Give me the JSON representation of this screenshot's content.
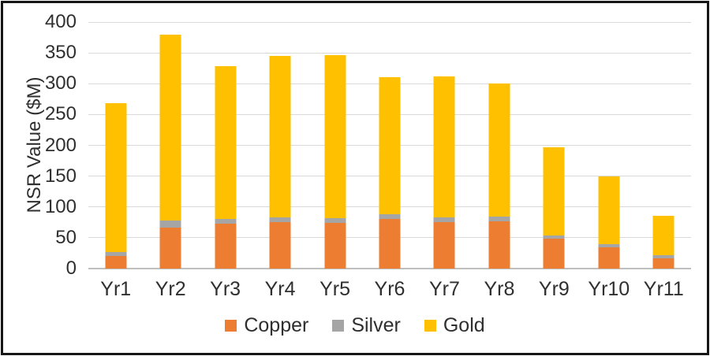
{
  "frame": {
    "border_color": "#161616",
    "background": "#ffffff"
  },
  "chart_data": {
    "type": "bar",
    "stacked": true,
    "title": "",
    "xlabel": "",
    "ylabel": "NSR Value ($M)",
    "ylim": [
      0,
      400
    ],
    "yticks": [
      0,
      50,
      100,
      150,
      200,
      250,
      300,
      350,
      400
    ],
    "grid": true,
    "legend_position": "bottom",
    "categories": [
      "Yr1",
      "Yr2",
      "Yr3",
      "Yr4",
      "Yr5",
      "Yr6",
      "Yr7",
      "Yr8",
      "Yr9",
      "Yr10",
      "Yr11"
    ],
    "series": [
      {
        "name": "Copper",
        "color": "#ED7D31",
        "values": [
          20,
          67,
          73,
          75,
          74,
          80,
          75,
          77,
          48,
          34,
          16
        ]
      },
      {
        "name": "Silver",
        "color": "#A5A5A5",
        "values": [
          7,
          11,
          8,
          8,
          8,
          8,
          8,
          8,
          6,
          6,
          6
        ]
      },
      {
        "name": "Gold",
        "color": "#FFC000",
        "values": [
          241,
          302,
          248,
          262,
          264,
          223,
          229,
          215,
          143,
          110,
          64
        ]
      }
    ],
    "totals": [
      268,
      380,
      329,
      345,
      346,
      311,
      312,
      300,
      197,
      150,
      86
    ],
    "colors": {
      "gridline": "#D9D9D9",
      "axis_line": "#BFBFBF",
      "text": "#2f2f2f"
    }
  }
}
